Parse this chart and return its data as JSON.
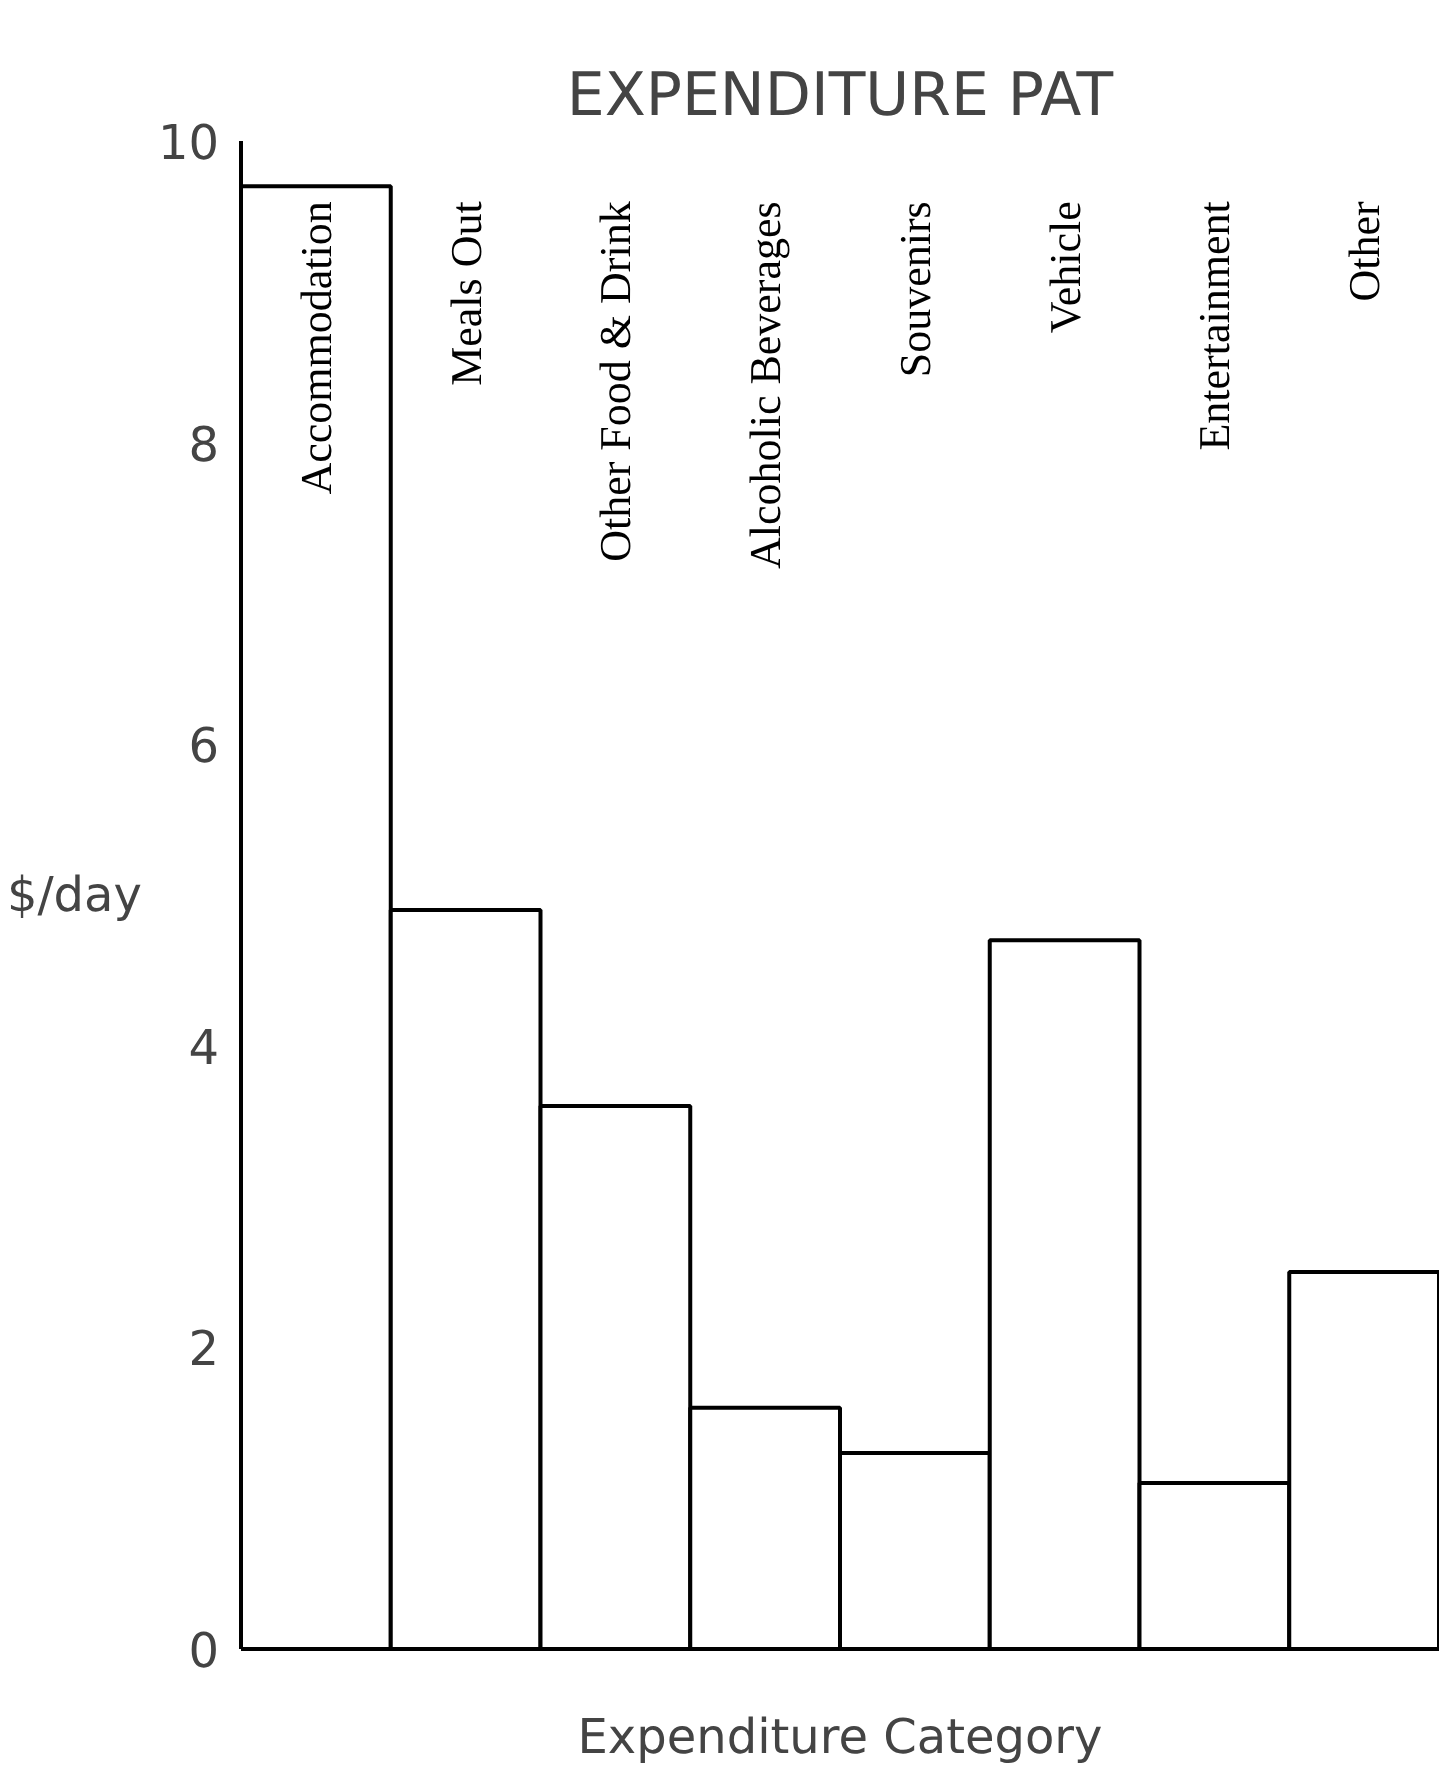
{
  "chart_data": {
    "type": "bar",
    "title": "EXPENDITURE PAT",
    "xlabel": "Expenditure Category",
    "ylabel": "$/day",
    "categories": [
      "Accommodation",
      "Meals Out",
      "Other Food & Drink",
      "Alcoholic Beverages",
      "Souvenirs",
      "Vehicle",
      "Entertainment",
      "Other"
    ],
    "values": [
      9.7,
      4.9,
      3.6,
      1.6,
      1.3,
      4.7,
      1.1,
      2.5
    ],
    "color": "#ffffff",
    "ylim": [
      0,
      10
    ],
    "yticks": [
      0,
      2,
      4,
      6,
      8,
      10
    ],
    "grid": false
  }
}
